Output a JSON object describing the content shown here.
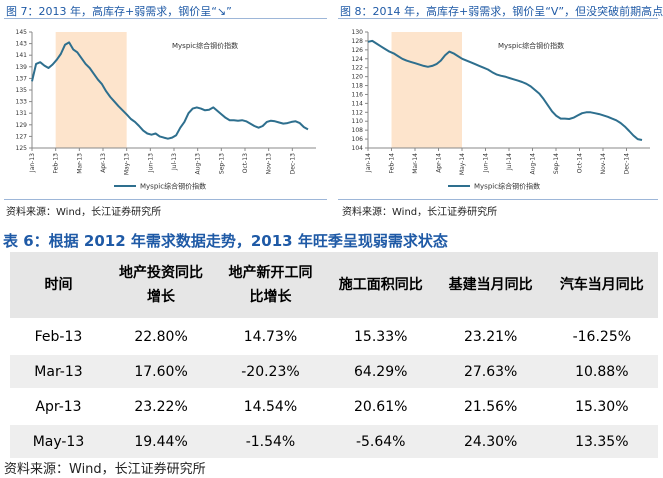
{
  "figures": [
    {
      "caption": "图 7：2013 年，高库存+弱需求，钢价呈“↘”",
      "source": "资料来源：Wind，长江证券研究所",
      "chart_data": {
        "type": "line",
        "series_label": "Myspic综合钢价指数",
        "legend": "Myspic综合钢价指数",
        "yticks": [
          125,
          127,
          129,
          131,
          133,
          135,
          137,
          139,
          141,
          143,
          145
        ],
        "ylim": [
          125,
          145
        ],
        "xticks": [
          "Jan-13",
          "Feb-13",
          "Mar-13",
          "Apr-13",
          "May-13",
          "Jun-13",
          "Jul-13",
          "Aug-13",
          "Sep-13",
          "Oct-13",
          "Nov-13",
          "Dec-13"
        ],
        "shade": [
          1,
          4
        ],
        "values": [
          136.5,
          139.5,
          139.8,
          139.2,
          138.8,
          139.4,
          140.2,
          141.2,
          142.8,
          143.2,
          142.0,
          141.5,
          140.5,
          139.5,
          138.8,
          137.8,
          136.8,
          136.0,
          134.8,
          133.8,
          133.0,
          132.2,
          131.5,
          130.8,
          130.0,
          129.5,
          128.8,
          128.0,
          127.5,
          127.3,
          127.5,
          127.0,
          126.8,
          126.6,
          126.8,
          127.2,
          128.5,
          129.5,
          131.0,
          131.8,
          132.0,
          131.8,
          131.5,
          131.6,
          132.0,
          131.4,
          130.8,
          130.2,
          129.8,
          129.8,
          129.7,
          129.8,
          129.6,
          129.2,
          128.8,
          128.5,
          128.8,
          129.5,
          129.7,
          129.6,
          129.4,
          129.2,
          129.3,
          129.5,
          129.6,
          129.3,
          128.6,
          128.2
        ]
      }
    },
    {
      "caption": "图 8：2014 年，高库存+弱需求，钢价呈“V”，但没突破前期高点",
      "source": "资料来源：Wind，长江证券研究所",
      "chart_data": {
        "type": "line",
        "series_label": "Myspic综合钢价指数",
        "legend": "Myspic综合钢价指数",
        "yticks": [
          104,
          106,
          108,
          110,
          112,
          114,
          116,
          118,
          120,
          122,
          124,
          126,
          128,
          130
        ],
        "ylim": [
          104,
          130
        ],
        "xticks": [
          "Jan-14",
          "Feb-14",
          "Mar-14",
          "Apr-14",
          "May-14",
          "Jun-14",
          "Jul-14",
          "Aug-14",
          "Sep-14",
          "Oct-14",
          "Nov-14",
          "Dec-14"
        ],
        "shade": [
          1,
          4
        ],
        "values": [
          127.8,
          128.0,
          127.4,
          126.8,
          126.2,
          125.6,
          125.2,
          124.6,
          124.0,
          123.6,
          123.3,
          123.0,
          122.7,
          122.4,
          122.2,
          122.4,
          122.8,
          123.6,
          124.8,
          125.6,
          125.2,
          124.6,
          124.0,
          123.6,
          123.2,
          122.8,
          122.4,
          122.0,
          121.6,
          121.0,
          120.5,
          120.2,
          120.0,
          119.7,
          119.4,
          119.1,
          118.8,
          118.4,
          117.8,
          117.0,
          116.2,
          115.0,
          113.6,
          112.2,
          111.2,
          110.6,
          110.6,
          110.5,
          110.8,
          111.3,
          111.8,
          112.0,
          112.0,
          111.8,
          111.6,
          111.3,
          111.0,
          110.6,
          110.2,
          109.6,
          108.8,
          107.8,
          106.8,
          106.0,
          105.8
        ]
      }
    }
  ],
  "table": {
    "title": "表 6：根据 2012 年需求数据走势，2013 年旺季呈现弱需求状态",
    "headers": [
      "时间",
      "地产投资同比增长",
      "地产新开工同比增长",
      "施工面积同比",
      "基建当月同比",
      "汽车当月同比"
    ],
    "header_lines": [
      [
        "时间"
      ],
      [
        "地产投资同比",
        "增长"
      ],
      [
        "地产新开工同",
        "比增长"
      ],
      [
        "施工面积同比"
      ],
      [
        "基建当月同比"
      ],
      [
        "汽车当月同比"
      ]
    ],
    "rows": [
      [
        "Feb-13",
        "22.80%",
        "14.73%",
        "15.33%",
        "23.21%",
        "-16.25%"
      ],
      [
        "Mar-13",
        "17.60%",
        "-20.23%",
        "64.29%",
        "27.63%",
        "10.88%"
      ],
      [
        "Apr-13",
        "23.22%",
        "14.54%",
        "20.61%",
        "21.56%",
        "15.30%"
      ],
      [
        "May-13",
        "19.44%",
        "-1.54%",
        "-5.64%",
        "24.30%",
        "13.35%"
      ]
    ],
    "source": "资料来源：Wind，长江证券研究所"
  },
  "colors": {
    "line": "#2e6f8e",
    "shade": "#fde4cc",
    "accent": "#1f5aa6"
  }
}
